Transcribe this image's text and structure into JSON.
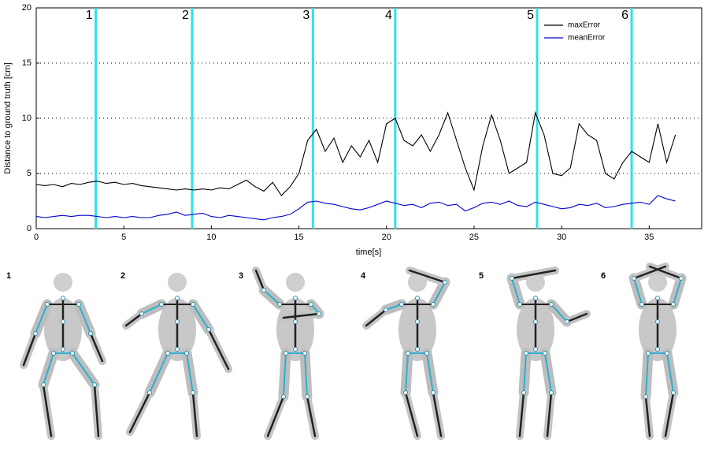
{
  "chart_data": {
    "type": "line",
    "y_label": "Distance to ground truth [cm]",
    "x_label": "time[s]",
    "x": [
      0,
      0.5,
      1,
      1.5,
      2,
      2.5,
      3,
      3.5,
      4,
      4.5,
      5,
      5.5,
      6,
      6.5,
      7,
      7.5,
      8,
      8.5,
      9,
      9.5,
      10,
      10.5,
      11,
      11.5,
      12,
      12.5,
      13,
      13.5,
      14,
      14.5,
      15,
      15.5,
      16,
      16.5,
      17,
      17.5,
      18,
      18.5,
      19,
      19.5,
      20,
      20.5,
      21,
      21.5,
      22,
      22.5,
      23,
      23.5,
      24,
      24.5,
      25,
      25.5,
      26,
      26.5,
      27,
      27.5,
      28,
      28.5,
      29,
      29.5,
      30,
      30.5,
      31,
      31.5,
      32,
      32.5,
      33,
      33.5,
      34,
      34.5,
      35,
      35.5,
      36,
      36.5
    ],
    "series": [
      {
        "name": "maxError",
        "color": "#000000",
        "values": [
          4.0,
          3.9,
          4.0,
          3.8,
          4.1,
          4.0,
          4.2,
          4.3,
          4.1,
          4.2,
          4.0,
          4.1,
          3.9,
          3.8,
          3.7,
          3.6,
          3.5,
          3.6,
          3.5,
          3.6,
          3.5,
          3.7,
          3.6,
          4.0,
          4.4,
          3.8,
          3.4,
          4.2,
          3.0,
          3.8,
          5.0,
          8.0,
          9.0,
          7.0,
          8.2,
          6.0,
          7.5,
          6.5,
          8.0,
          6.0,
          9.5,
          10.0,
          8.0,
          7.5,
          8.5,
          7.0,
          8.5,
          10.5,
          8.0,
          5.5,
          3.5,
          7.5,
          10.3,
          8.0,
          5.0,
          5.5,
          6.0,
          10.5,
          8.5,
          5.0,
          4.8,
          5.5,
          9.5,
          8.5,
          8.0,
          5.0,
          4.5,
          6.0,
          7.0,
          6.5,
          6.0,
          9.5,
          6.0,
          8.5
        ]
      },
      {
        "name": "meanError",
        "color": "#0000cc",
        "values": [
          1.1,
          1.0,
          1.1,
          1.2,
          1.1,
          1.2,
          1.2,
          1.1,
          1.0,
          1.1,
          1.0,
          1.1,
          1.0,
          1.0,
          1.2,
          1.3,
          1.5,
          1.2,
          1.3,
          1.4,
          1.1,
          1.0,
          1.2,
          1.1,
          1.0,
          0.9,
          0.8,
          1.0,
          1.1,
          1.3,
          1.8,
          2.4,
          2.5,
          2.3,
          2.2,
          2.0,
          1.8,
          1.7,
          1.9,
          2.2,
          2.5,
          2.3,
          2.1,
          2.2,
          1.9,
          2.3,
          2.4,
          2.1,
          2.2,
          1.6,
          1.9,
          2.3,
          2.4,
          2.2,
          2.5,
          2.1,
          2.0,
          2.4,
          2.2,
          2.0,
          1.8,
          1.9,
          2.2,
          2.1,
          2.3,
          1.9,
          2.0,
          2.2,
          2.3,
          2.4,
          2.2,
          3.0,
          2.7,
          2.5
        ]
      }
    ],
    "markers": [
      {
        "x": 3.4,
        "label": "1",
        "color": "#33e0e8"
      },
      {
        "x": 8.9,
        "label": "2",
        "color": "#33e0e8"
      },
      {
        "x": 15.8,
        "label": "3",
        "color": "#33e0e8"
      },
      {
        "x": 20.5,
        "label": "4",
        "color": "#33e0e8"
      },
      {
        "x": 28.6,
        "label": "5",
        "color": "#33e0e8"
      },
      {
        "x": 34.0,
        "label": "6",
        "color": "#33e0e8"
      }
    ],
    "xlim": [
      0,
      38
    ],
    "xticks": [
      0,
      5,
      10,
      15,
      20,
      25,
      30,
      35
    ],
    "ylim": [
      0,
      20
    ],
    "yticks": [
      0,
      5,
      10,
      15,
      20
    ],
    "grid": true,
    "legend": "top-right"
  },
  "panels": [
    {
      "label": "1"
    },
    {
      "label": "2"
    },
    {
      "label": "3"
    },
    {
      "label": "4"
    },
    {
      "label": "5"
    },
    {
      "label": "6"
    }
  ]
}
